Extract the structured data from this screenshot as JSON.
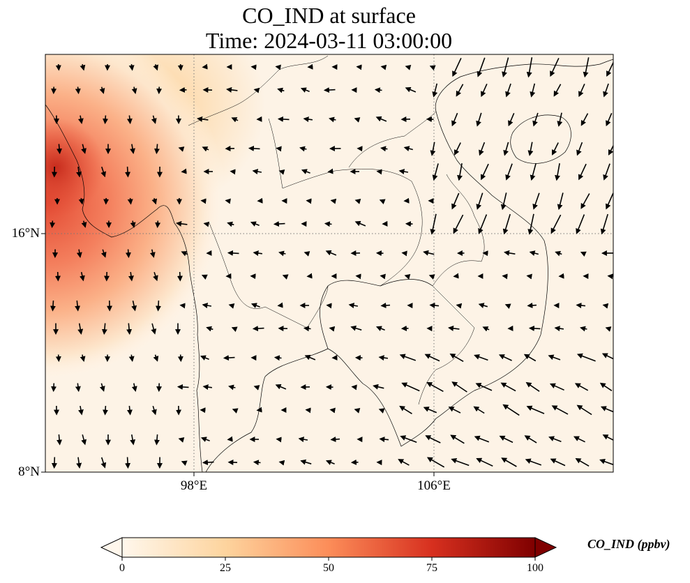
{
  "title": {
    "line1": "CO_IND at surface",
    "line2": "Time: 2024-03-11 03:00:00"
  },
  "map": {
    "latitude_labels": [
      "16°N",
      "8°N"
    ],
    "longitude_labels": [
      "98°E",
      "106°E"
    ],
    "gridlines": "dotted",
    "colormap": "OrRd",
    "features": [
      "coastlines",
      "country borders",
      "wind vectors"
    ]
  },
  "colorbar": {
    "label": "CO_IND (ppbv)",
    "ticks": [
      "0",
      "25",
      "50",
      "75",
      "100"
    ],
    "min": 0,
    "max": 100,
    "extend": "both",
    "colors": [
      "#fff7ec",
      "#fdd49e",
      "#fc8d59",
      "#d7301f",
      "#7f0000"
    ]
  }
}
